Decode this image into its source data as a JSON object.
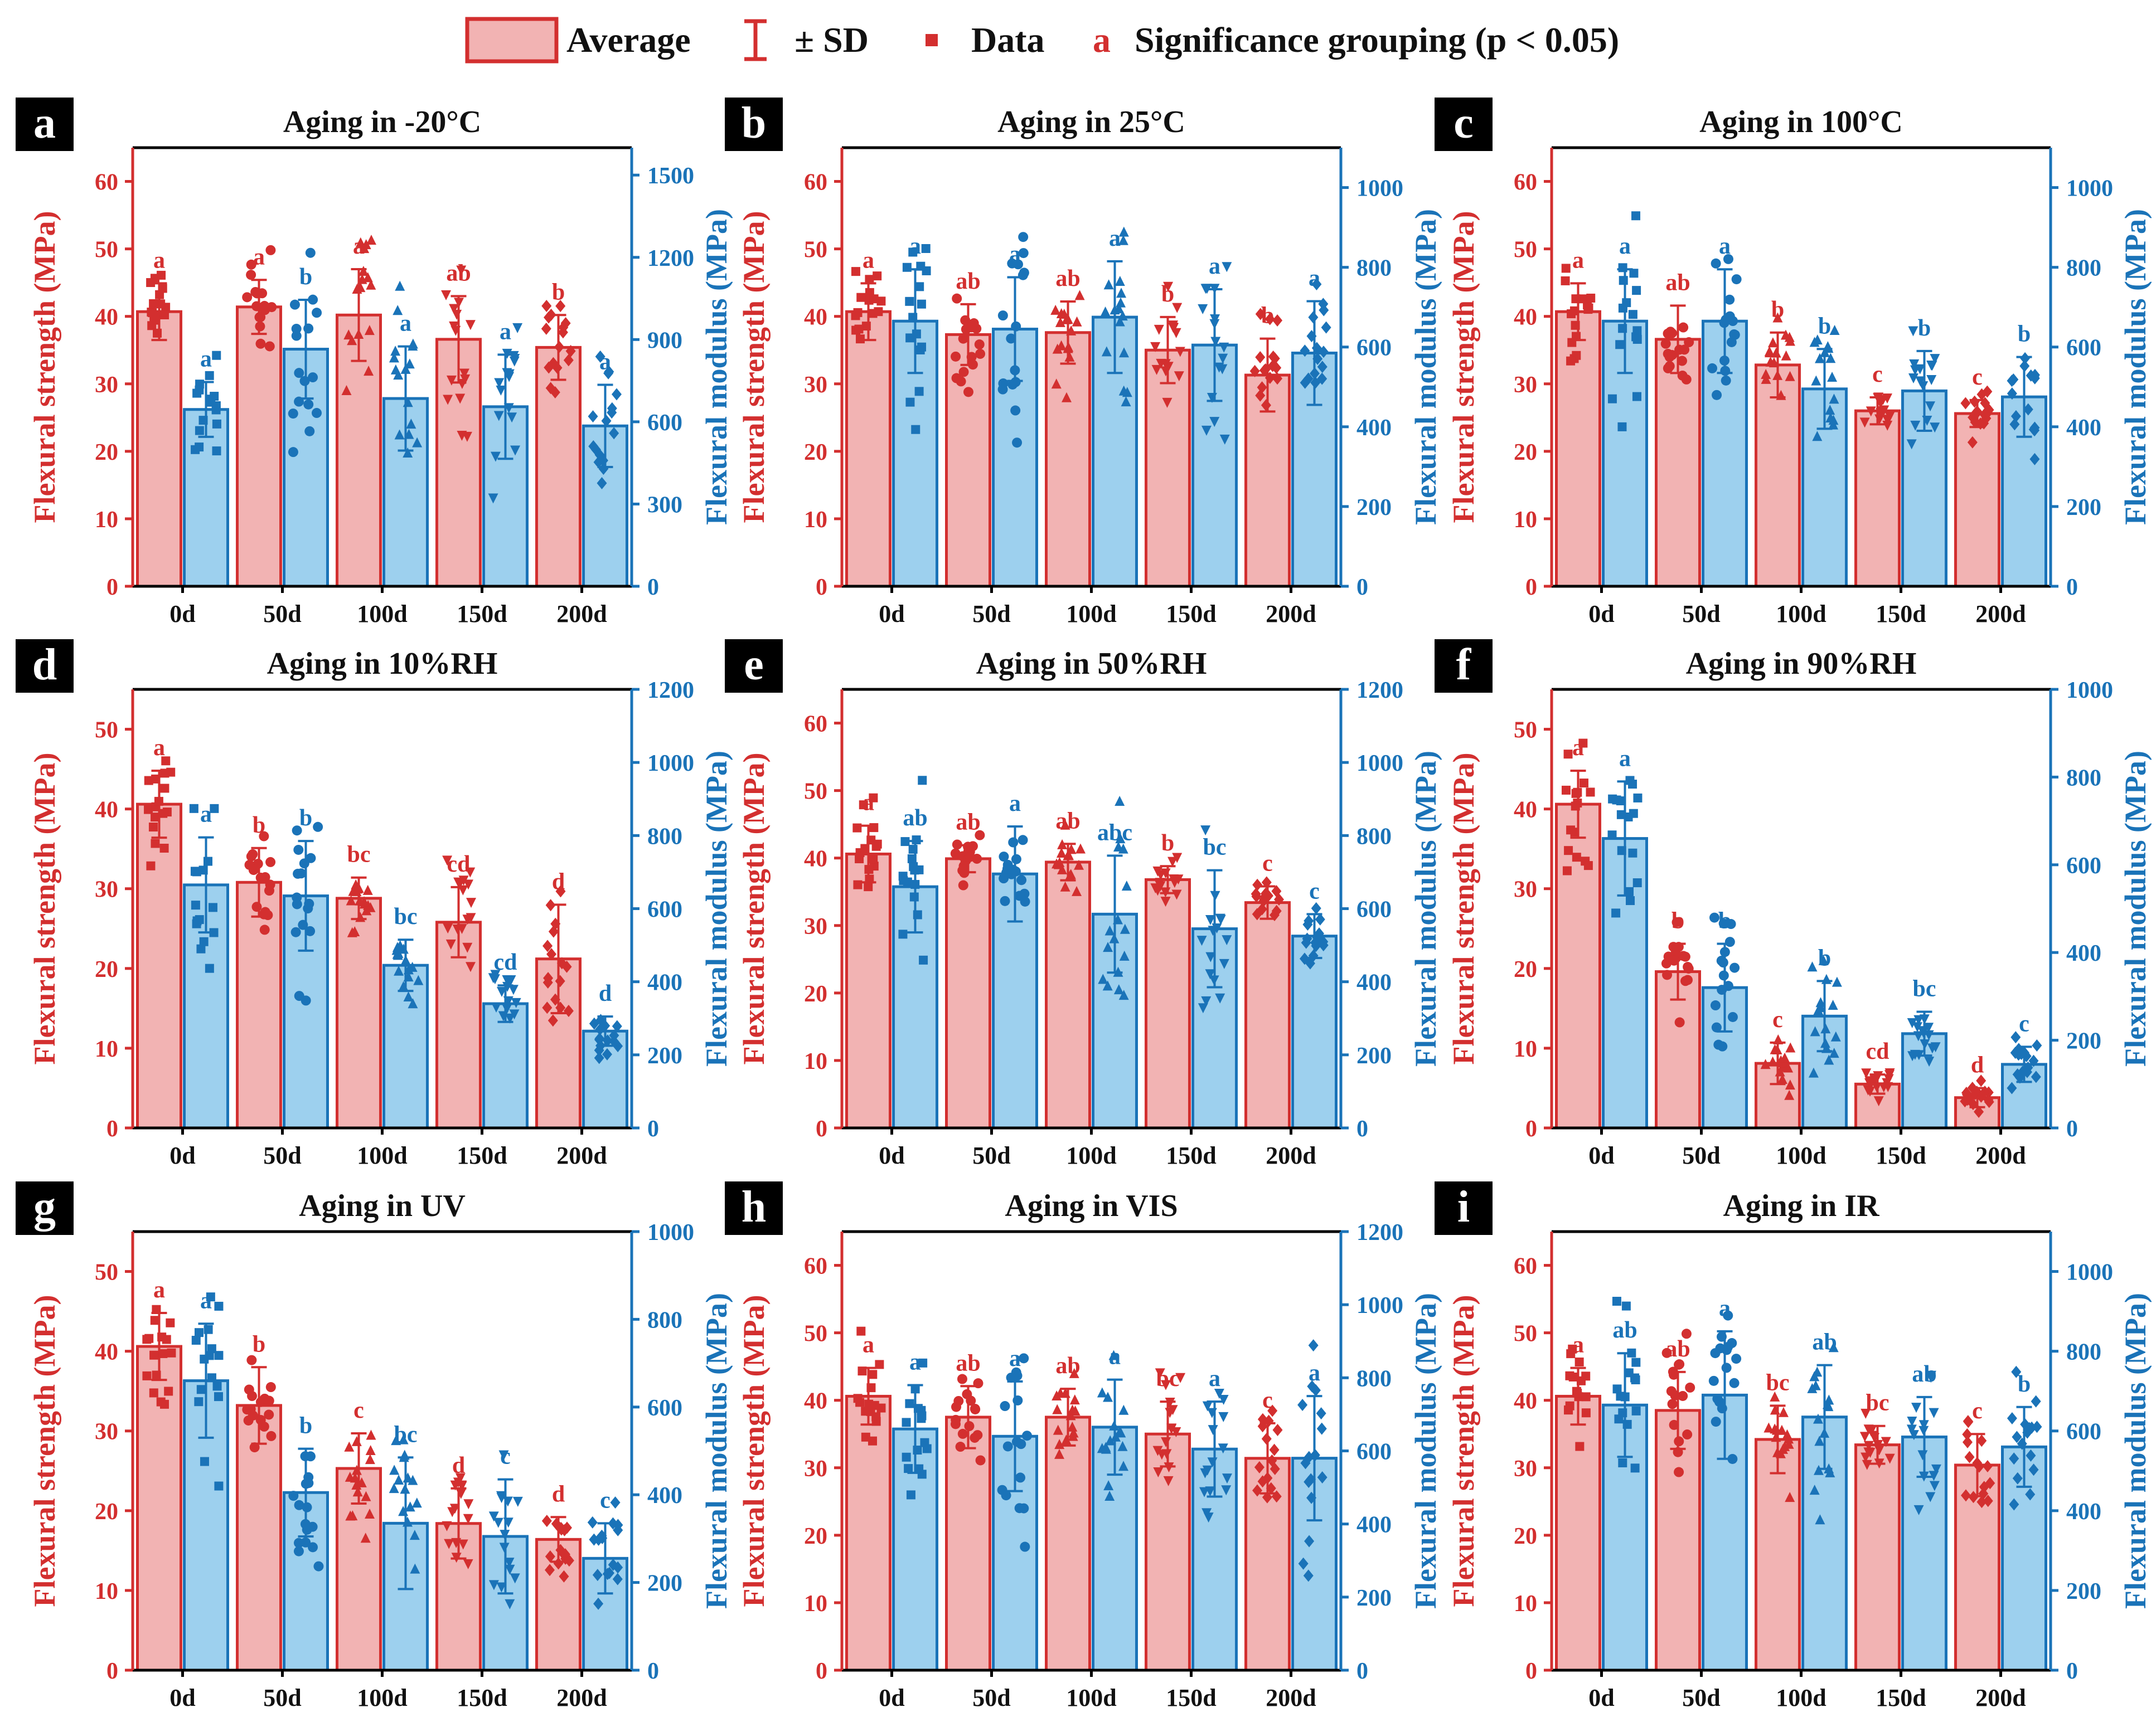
{
  "colors": {
    "red": "#d32f2f",
    "red_fill": "#f2b3b3",
    "blue": "#1a73b8",
    "blue_fill": "#9dd0ee",
    "black": "#000000"
  },
  "legend": {
    "average": "Average",
    "sd": "± SD",
    "data": "Data",
    "sig_symbol": "a",
    "significance": "Significance grouping (p < 0.05)"
  },
  "chart_data": [
    {
      "type": "bar",
      "letter": "a",
      "title": "Aging in -20°C",
      "categories": [
        "0d",
        "50d",
        "100d",
        "150d",
        "200d"
      ],
      "ylabel_left": "Flexural strength (MPa)",
      "ylabel_right": "Flexural modulus (MPa)",
      "ylim_left": [
        0,
        65
      ],
      "yticks_left": [
        0,
        10,
        20,
        30,
        40,
        50,
        60
      ],
      "ylim_right": [
        0,
        1600
      ],
      "yticks_right": [
        0,
        300,
        600,
        900,
        1200,
        1500
      ],
      "series": [
        {
          "name": "Flexural strength",
          "values": [
            40.7,
            41.4,
            40.2,
            36.6,
            35.4
          ],
          "sd": [
            4.2,
            4.0,
            6.8,
            6.4,
            4.8
          ],
          "groups": [
            "a",
            "a",
            "a",
            "ab",
            "b"
          ]
        },
        {
          "name": "Flexural modulus",
          "values": [
            645,
            865,
            685,
            655,
            585
          ],
          "sd": [
            100,
            180,
            190,
            190,
            150
          ],
          "groups": [
            "a",
            "b",
            "a",
            "a",
            "a"
          ]
        }
      ]
    },
    {
      "type": "bar",
      "letter": "b",
      "title": "Aging in 25°C",
      "categories": [
        "0d",
        "50d",
        "100d",
        "150d",
        "200d"
      ],
      "ylabel_left": "Flexural strength (MPa)",
      "ylabel_right": "Flexural modulus (MPa)",
      "ylim_left": [
        0,
        65
      ],
      "yticks_left": [
        0,
        10,
        20,
        30,
        40,
        50,
        60
      ],
      "ylim_right": [
        0,
        1100
      ],
      "yticks_right": [
        0,
        200,
        400,
        600,
        800,
        1000
      ],
      "series": [
        {
          "name": "Flexural strength",
          "values": [
            40.7,
            37.3,
            37.6,
            35.0,
            31.3
          ],
          "sd": [
            4.2,
            4.5,
            4.6,
            4.9,
            5.4
          ],
          "groups": [
            "a",
            "ab",
            "ab",
            "b",
            "b"
          ]
        },
        {
          "name": "Flexural modulus",
          "values": [
            665,
            645,
            675,
            605,
            585
          ],
          "sd": [
            130,
            130,
            140,
            140,
            130
          ],
          "groups": [
            "a",
            "a",
            "a",
            "a",
            "a"
          ]
        }
      ]
    },
    {
      "type": "bar",
      "letter": "c",
      "title": "Aging in 100°C",
      "categories": [
        "0d",
        "50d",
        "100d",
        "150d",
        "200d"
      ],
      "ylabel_left": "Flexural strength (MPa)",
      "ylabel_right": "Flexural modulus (MPa)",
      "ylim_left": [
        0,
        65
      ],
      "yticks_left": [
        0,
        10,
        20,
        30,
        40,
        50,
        60
      ],
      "ylim_right": [
        0,
        1100
      ],
      "yticks_right": [
        0,
        200,
        400,
        600,
        800,
        1000
      ],
      "series": [
        {
          "name": "Flexural strength",
          "values": [
            40.7,
            36.6,
            32.8,
            26.0,
            25.6
          ],
          "sd": [
            4.2,
            5.0,
            4.8,
            2.0,
            2.0
          ],
          "groups": [
            "a",
            "ab",
            "b",
            "c",
            "c"
          ]
        },
        {
          "name": "Flexural modulus",
          "values": [
            665,
            665,
            495,
            490,
            475
          ],
          "sd": [
            130,
            130,
            100,
            100,
            100
          ],
          "groups": [
            "a",
            "a",
            "b",
            "b",
            "b"
          ]
        }
      ]
    },
    {
      "type": "bar",
      "letter": "d",
      "title": "Aging in 10%RH",
      "categories": [
        "0d",
        "50d",
        "100d",
        "150d",
        "200d"
      ],
      "ylabel_left": "Flexural strength (MPa)",
      "ylabel_right": "Flexural modulus (MPa)",
      "ylim_left": [
        0,
        55
      ],
      "yticks_left": [
        0,
        10,
        20,
        30,
        40,
        50
      ],
      "ylim_right": [
        0,
        1200
      ],
      "yticks_right": [
        0,
        200,
        400,
        600,
        800,
        1000,
        1200
      ],
      "series": [
        {
          "name": "Flexural strength",
          "values": [
            40.6,
            30.8,
            28.8,
            25.8,
            21.2
          ],
          "sd": [
            4.2,
            4.3,
            2.6,
            4.4,
            6.8
          ],
          "groups": [
            "a",
            "b",
            "bc",
            "cd",
            "d"
          ]
        },
        {
          "name": "Flexural modulus",
          "values": [
            665,
            635,
            445,
            340,
            265
          ],
          "sd": [
            130,
            150,
            70,
            50,
            40
          ],
          "groups": [
            "a",
            "b",
            "bc",
            "cd",
            "d"
          ]
        }
      ]
    },
    {
      "type": "bar",
      "letter": "e",
      "title": "Aging in 50%RH",
      "categories": [
        "0d",
        "50d",
        "100d",
        "150d",
        "200d"
      ],
      "ylabel_left": "Flexural strength (MPa)",
      "ylabel_right": "Flexural modulus (MPa)",
      "ylim_left": [
        0,
        65
      ],
      "yticks_left": [
        0,
        10,
        20,
        30,
        40,
        50,
        60
      ],
      "ylim_right": [
        0,
        1200
      ],
      "yticks_right": [
        0,
        200,
        400,
        600,
        800,
        1000,
        1200
      ],
      "series": [
        {
          "name": "Flexural strength",
          "values": [
            40.6,
            39.9,
            39.4,
            36.8,
            33.4
          ],
          "sd": [
            4.2,
            2.0,
            2.7,
            2.0,
            2.4
          ],
          "groups": [
            "a",
            "ab",
            "ab",
            "b",
            "c"
          ]
        },
        {
          "name": "Flexural modulus",
          "values": [
            660,
            695,
            585,
            545,
            525
          ],
          "sd": [
            125,
            130,
            160,
            160,
            60
          ],
          "groups": [
            "ab",
            "a",
            "abc",
            "bc",
            "c"
          ]
        }
      ]
    },
    {
      "type": "bar",
      "letter": "f",
      "title": "Aging in 90%RH",
      "categories": [
        "0d",
        "50d",
        "100d",
        "150d",
        "200d"
      ],
      "ylabel_left": "Flexural strength (MPa)",
      "ylabel_right": "Flexural modulus (MPa)",
      "ylim_left": [
        0,
        55
      ],
      "yticks_left": [
        0,
        10,
        20,
        30,
        40,
        50
      ],
      "ylim_right": [
        0,
        1000
      ],
      "yticks_right": [
        0,
        200,
        400,
        600,
        800,
        1000
      ],
      "series": [
        {
          "name": "Flexural strength",
          "values": [
            40.6,
            19.6,
            8.1,
            5.5,
            3.8
          ],
          "sd": [
            4.2,
            3.5,
            2.6,
            1.2,
            1.2
          ],
          "groups": [
            "a",
            "b",
            "c",
            "cd",
            "d"
          ]
        },
        {
          "name": "Flexural modulus",
          "values": [
            660,
            320,
            255,
            215,
            145
          ],
          "sd": [
            130,
            100,
            80,
            50,
            40
          ],
          "groups": [
            "a",
            "b",
            "b",
            "bc",
            "c"
          ]
        }
      ]
    },
    {
      "type": "bar",
      "letter": "g",
      "title": "Aging in UV",
      "categories": [
        "0d",
        "50d",
        "100d",
        "150d",
        "200d"
      ],
      "ylabel_left": "Flexural strength (MPa)",
      "ylabel_right": "Flexural modulus (MPa)",
      "ylim_left": [
        0,
        55
      ],
      "yticks_left": [
        0,
        10,
        20,
        30,
        40,
        50
      ],
      "ylim_right": [
        0,
        1000
      ],
      "yticks_right": [
        0,
        200,
        400,
        600,
        800,
        1000
      ],
      "series": [
        {
          "name": "Flexural strength",
          "values": [
            40.6,
            33.2,
            25.3,
            18.4,
            16.4
          ],
          "sd": [
            4.2,
            4.8,
            4.4,
            4.4,
            2.8
          ],
          "groups": [
            "a",
            "b",
            "c",
            "d",
            "d"
          ]
        },
        {
          "name": "Flexural modulus",
          "values": [
            660,
            405,
            335,
            305,
            255
          ],
          "sd": [
            130,
            100,
            150,
            130,
            80
          ],
          "groups": [
            "a",
            "b",
            "bc",
            "c",
            "c"
          ]
        }
      ]
    },
    {
      "type": "bar",
      "letter": "h",
      "title": "Aging in VIS",
      "categories": [
        "0d",
        "50d",
        "100d",
        "150d",
        "200d"
      ],
      "ylabel_left": "Flexural strength (MPa)",
      "ylabel_right": "Flexural modulus (MPa)",
      "ylim_left": [
        0,
        65
      ],
      "yticks_left": [
        0,
        10,
        20,
        30,
        40,
        50,
        60
      ],
      "ylim_right": [
        0,
        1200
      ],
      "yticks_right": [
        0,
        200,
        400,
        600,
        800,
        1000,
        1200
      ],
      "series": [
        {
          "name": "Flexural strength",
          "values": [
            40.6,
            37.5,
            37.5,
            35.0,
            31.4
          ],
          "sd": [
            4.2,
            4.6,
            4.2,
            4.8,
            5.2
          ],
          "groups": [
            "a",
            "ab",
            "ab",
            "bc",
            "c"
          ]
        },
        {
          "name": "Flexural modulus",
          "values": [
            660,
            640,
            665,
            605,
            580
          ],
          "sd": [
            120,
            150,
            130,
            130,
            170
          ],
          "groups": [
            "a",
            "a",
            "a",
            "a",
            "a"
          ]
        }
      ]
    },
    {
      "type": "bar",
      "letter": "i",
      "title": "Aging in IR",
      "categories": [
        "0d",
        "50d",
        "100d",
        "150d",
        "200d"
      ],
      "ylabel_left": "Flexural strength (MPa)",
      "ylabel_right": "Flexural modulus (MPa)",
      "ylim_left": [
        0,
        65
      ],
      "yticks_left": [
        0,
        10,
        20,
        30,
        40,
        50,
        60
      ],
      "ylim_right": [
        0,
        1100
      ],
      "yticks_right": [
        0,
        200,
        400,
        600,
        800,
        1000
      ],
      "series": [
        {
          "name": "Flexural strength",
          "values": [
            40.6,
            38.5,
            34.2,
            33.4,
            30.4
          ],
          "sd": [
            4.2,
            5.7,
            5.0,
            2.8,
            4.6
          ],
          "groups": [
            "a",
            "ab",
            "bc",
            "bc",
            "c"
          ]
        },
        {
          "name": "Flexural modulus",
          "values": [
            665,
            690,
            635,
            585,
            560
          ],
          "sd": [
            130,
            160,
            130,
            100,
            100
          ],
          "groups": [
            "ab",
            "a",
            "ab",
            "ab",
            "b"
          ]
        }
      ]
    }
  ]
}
